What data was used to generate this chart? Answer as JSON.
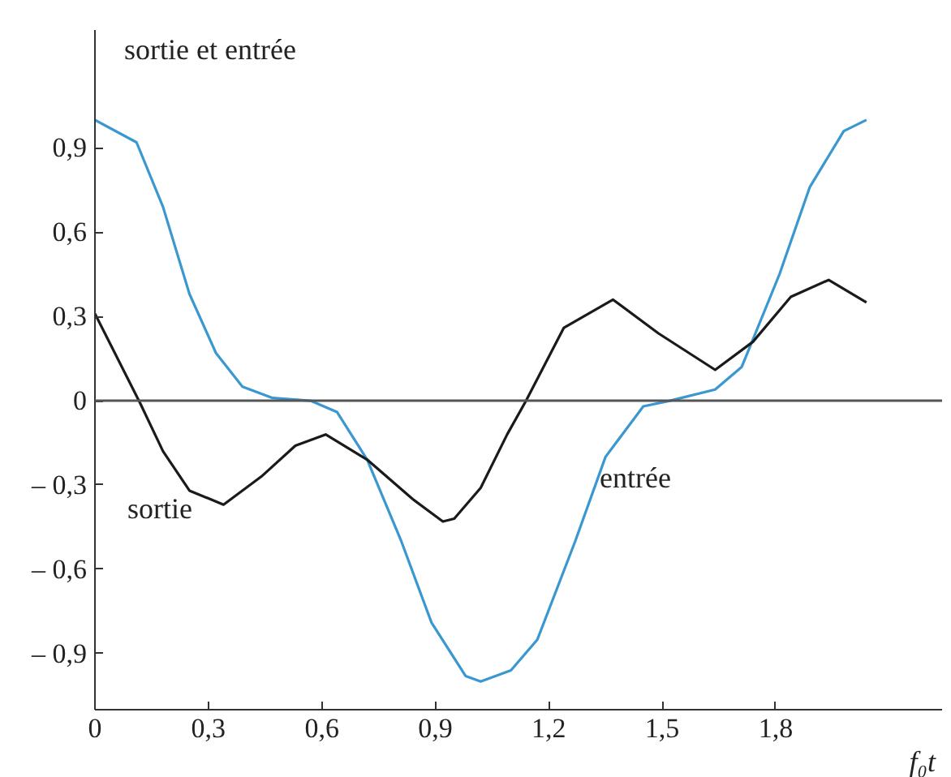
{
  "chart_data": {
    "type": "line",
    "ylabel": "sortie et entrée",
    "xlabel": "f₀t",
    "xlim": [
      0,
      2.24
    ],
    "ylim": [
      -1.1,
      1.32
    ],
    "xticks": [
      {
        "value": 0,
        "label": "0"
      },
      {
        "value": 0.3,
        "label": "0,3"
      },
      {
        "value": 0.6,
        "label": "0,6"
      },
      {
        "value": 0.9,
        "label": "0,9"
      },
      {
        "value": 1.2,
        "label": "1,2"
      },
      {
        "value": 1.5,
        "label": "1,5"
      },
      {
        "value": 1.8,
        "label": "1,8"
      }
    ],
    "yticks": [
      {
        "value": -0.9,
        "label": "– 0,9"
      },
      {
        "value": -0.6,
        "label": "– 0,6"
      },
      {
        "value": -0.3,
        "label": "– 0,3"
      },
      {
        "value": 0,
        "label": "0"
      },
      {
        "value": 0.3,
        "label": "0,3"
      },
      {
        "value": 0.6,
        "label": "0,6"
      },
      {
        "value": 0.9,
        "label": "0,9"
      }
    ],
    "grid": false,
    "line_style": "solid",
    "marker": "none",
    "ref_lines": [
      {
        "axis": "y",
        "value": 0,
        "label": null,
        "color": "#555555"
      }
    ],
    "series": [
      {
        "color": "#3a97cf",
        "x": [
          0,
          0.11,
          0.18,
          0.25,
          0.32,
          0.39,
          0.47,
          0.57,
          0.64,
          0.72,
          0.81,
          0.89,
          0.98,
          1.02,
          1.1,
          1.17,
          1.27,
          1.35,
          1.45,
          1.52,
          1.64,
          1.71,
          1.81,
          1.89,
          1.98,
          2.04
        ],
        "values": [
          1.0,
          0.92,
          0.69,
          0.38,
          0.17,
          0.05,
          0.01,
          0.0,
          -0.04,
          -0.21,
          -0.5,
          -0.79,
          -0.98,
          -1.0,
          -0.96,
          -0.85,
          -0.5,
          -0.2,
          -0.02,
          0.0,
          0.04,
          0.12,
          0.45,
          0.76,
          0.96,
          1.0
        ]
      },
      {
        "color": "#1a1a1a",
        "x": [
          0,
          0.12,
          0.18,
          0.25,
          0.34,
          0.44,
          0.53,
          0.61,
          0.72,
          0.84,
          0.92,
          0.95,
          1.02,
          1.09,
          1.14,
          1.24,
          1.37,
          1.49,
          1.64,
          1.74,
          1.84,
          1.94,
          2.04
        ],
        "values": [
          0.31,
          -0.01,
          -0.18,
          -0.32,
          -0.37,
          -0.27,
          -0.16,
          -0.12,
          -0.21,
          -0.35,
          -0.43,
          -0.42,
          -0.31,
          -0.12,
          0.0,
          0.26,
          0.36,
          0.24,
          0.11,
          0.21,
          0.37,
          0.43,
          0.35
        ]
      }
    ],
    "annotations": [
      "sortie",
      "entrée"
    ]
  }
}
